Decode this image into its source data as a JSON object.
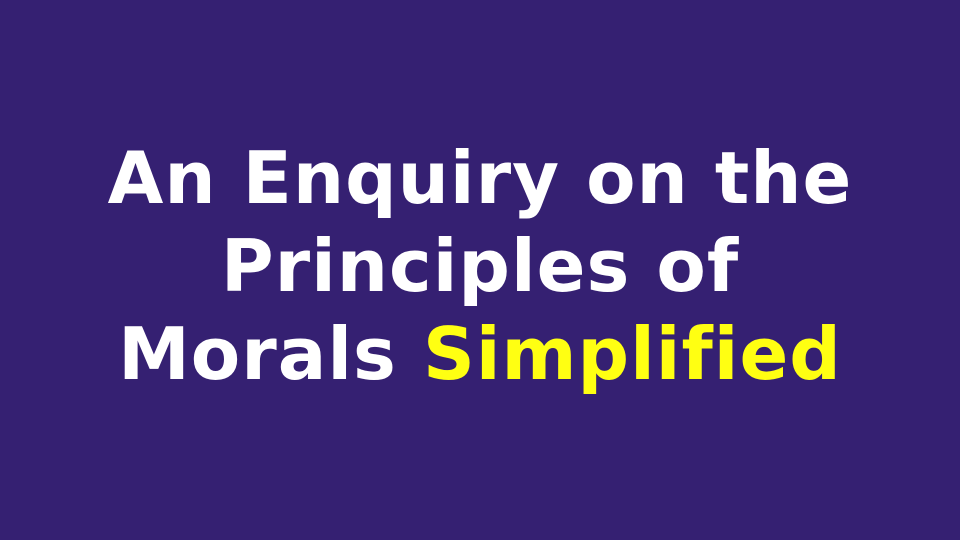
{
  "slide": {
    "title_line_1": "An Enquiry on the",
    "title_line_2": "Principles of",
    "title_line_3_plain": "Morals",
    "title_line_3_highlight": "Simplified"
  },
  "colors": {
    "background": "#352072",
    "title_text": "#ffffff",
    "highlight_text": "#ffff12"
  }
}
